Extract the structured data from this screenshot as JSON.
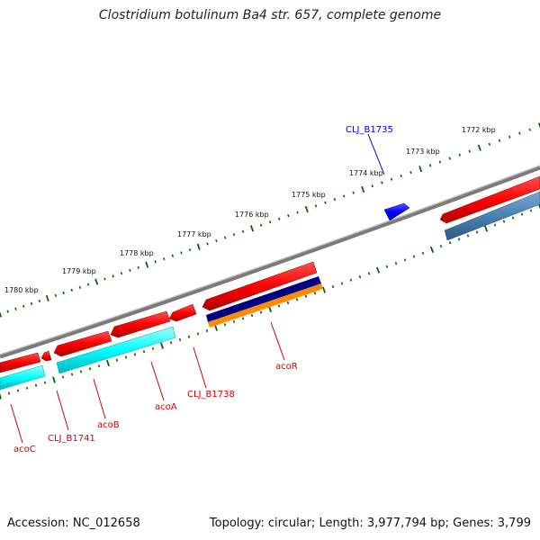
{
  "title": "Clostridium botulinum Ba4 str. 657, complete genome",
  "footer": {
    "accession": "Accession: NC_012658",
    "topology": "Topology: circular; Length: 3,977,794 bp; Genes: 3,799"
  },
  "colors": {
    "backbone": "#888888",
    "forward_cds": "#ff0000",
    "reverse_cds": "#ff0000",
    "forward_highlight": "#0000ff",
    "track_cyan": "#00ffff",
    "track_steelblue": "#4682b4",
    "track_navy": "#000080",
    "track_orange": "#ff8c00",
    "ticks": "#006400",
    "label_red": "#cc0000",
    "label_blue": "#0000cc"
  },
  "ruler_labels": [
    "1772 kbp",
    "1773 kbp",
    "1774 kbp",
    "1775 kbp",
    "1776 kbp",
    "1777 kbp",
    "1778 kbp",
    "1779 kbp",
    "1780 kbp"
  ],
  "gene_labels": {
    "clj_b1735": "CLJ_B1735",
    "acor": "acoR",
    "clj_b1738": "CLJ_B1738",
    "acoa": "acoA",
    "acob": "acoB",
    "clj_b1741": "CLJ_B1741",
    "acoc": "acoC"
  }
}
